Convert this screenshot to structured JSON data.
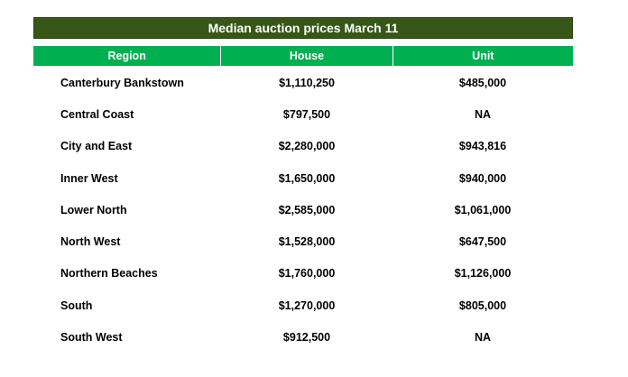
{
  "colors": {
    "title_bg": "#375719",
    "header_bg": "#00b050",
    "text": "#000000",
    "header_text": "#ffffff"
  },
  "chart_data": {
    "type": "table",
    "title": "Median auction prices  March 11",
    "columns": [
      "Region",
      "House",
      "Unit"
    ],
    "rows": [
      {
        "region": "Canterbury Bankstown",
        "house": "$1,110,250",
        "unit": "$485,000"
      },
      {
        "region": "Central Coast",
        "house": "$797,500",
        "unit": "NA"
      },
      {
        "region": "City and East",
        "house": "$2,280,000",
        "unit": "$943,816"
      },
      {
        "region": "Inner West",
        "house": "$1,650,000",
        "unit": "$940,000"
      },
      {
        "region": "Lower North",
        "house": "$2,585,000",
        "unit": "$1,061,000"
      },
      {
        "region": "North West",
        "house": "$1,528,000",
        "unit": "$647,500"
      },
      {
        "region": "Northern Beaches",
        "house": "$1,760,000",
        "unit": "$1,126,000"
      },
      {
        "region": "South",
        "house": "$1,270,000",
        "unit": "$805,000"
      },
      {
        "region": "South West",
        "house": "$912,500",
        "unit": "NA"
      }
    ]
  }
}
